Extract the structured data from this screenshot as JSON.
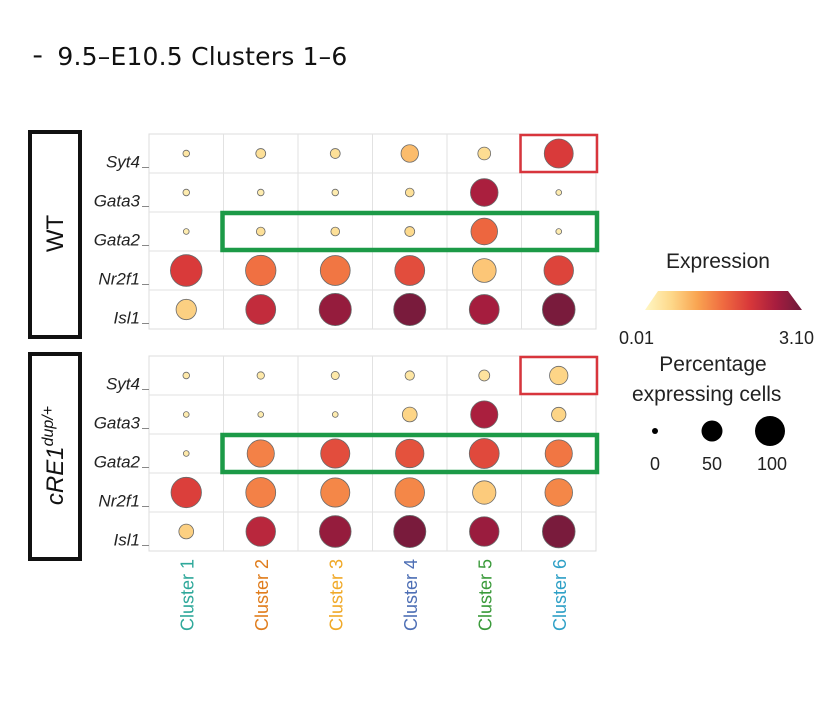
{
  "title": "╴ 9.5–E10.5 Clusters 1–6",
  "chart_data": {
    "type": "dot-plot",
    "genes": [
      "Syt4",
      "Gata3",
      "Gata2",
      "Nr2f1",
      "Isl1"
    ],
    "categories": [
      "Cluster 1",
      "Cluster 2",
      "Cluster 3",
      "Cluster 4",
      "Cluster 5",
      "Cluster 6"
    ],
    "category_colors": [
      "#2ea89a",
      "#e07d1d",
      "#f0a928",
      "#4e6fb5",
      "#3a9a3a",
      "#2ea0c6"
    ],
    "panels": [
      {
        "label": "WT",
        "label_sup": "",
        "expression": [
          [
            0.3,
            0.4,
            0.4,
            0.8,
            0.45,
            2.05
          ],
          [
            0.2,
            0.2,
            0.2,
            0.4,
            2.55,
            0.2
          ],
          [
            0.2,
            0.4,
            0.4,
            0.5,
            1.6,
            0.2
          ],
          [
            2.05,
            1.5,
            1.45,
            1.85,
            0.7,
            1.95
          ],
          [
            0.6,
            2.3,
            2.75,
            3.0,
            2.6,
            3.0
          ]
        ],
        "percent": [
          [
            4,
            9,
            9,
            28,
            15,
            77
          ],
          [
            4,
            4,
            4,
            7,
            70,
            3
          ],
          [
            3,
            7,
            7,
            9,
            65,
            3
          ],
          [
            92,
            85,
            82,
            82,
            52,
            80
          ],
          [
            38,
            82,
            95,
            95,
            82,
            98
          ]
        ]
      },
      {
        "label": "cRE1",
        "label_sup": "dup/+",
        "expression": [
          [
            0.25,
            0.25,
            0.25,
            0.3,
            0.35,
            0.55
          ],
          [
            0.2,
            0.2,
            0.2,
            0.55,
            2.55,
            0.55
          ],
          [
            0.25,
            1.35,
            1.85,
            1.8,
            1.9,
            1.45
          ],
          [
            2.0,
            1.35,
            1.3,
            1.3,
            0.65,
            1.3
          ],
          [
            0.6,
            2.4,
            2.75,
            3.0,
            2.7,
            3.0
          ]
        ],
        "percent": [
          [
            4,
            5,
            6,
            8,
            11,
            31
          ],
          [
            3,
            3,
            3,
            20,
            68,
            19
          ],
          [
            3,
            68,
            78,
            74,
            82,
            68
          ],
          [
            85,
            82,
            78,
            80,
            50,
            70
          ],
          [
            20,
            80,
            92,
            95,
            80,
            98
          ]
        ]
      }
    ],
    "highlights": [
      {
        "panel": 0,
        "gene": "Syt4",
        "clusters": [
          "Cluster 6"
        ],
        "color": "#d8353c"
      },
      {
        "panel": 0,
        "gene": "Gata2",
        "clusters": [
          "Cluster 2",
          "Cluster 3",
          "Cluster 4",
          "Cluster 5",
          "Cluster 6"
        ],
        "color": "#1c9a47"
      },
      {
        "panel": 1,
        "gene": "Syt4",
        "clusters": [
          "Cluster 6"
        ],
        "color": "#d8353c"
      },
      {
        "panel": 1,
        "gene": "Gata2",
        "clusters": [
          "Cluster 2",
          "Cluster 3",
          "Cluster 4",
          "Cluster 5",
          "Cluster 6"
        ],
        "color": "#1c9a47"
      }
    ],
    "expression_legend": {
      "title": "Expression",
      "min": 0.01,
      "max": 3.1,
      "min_label": "0.01",
      "max_label": "3.10"
    },
    "size_legend": {
      "title_lines": [
        "Percentage",
        "expressing cells"
      ],
      "values": [
        0,
        50,
        100
      ],
      "labels": [
        "0",
        "50",
        "100"
      ]
    },
    "colormap": [
      "#fff7c4",
      "#fdd88a",
      "#f9a451",
      "#ef6a40",
      "#d8383a",
      "#a71d3e",
      "#6e1a3c"
    ]
  }
}
